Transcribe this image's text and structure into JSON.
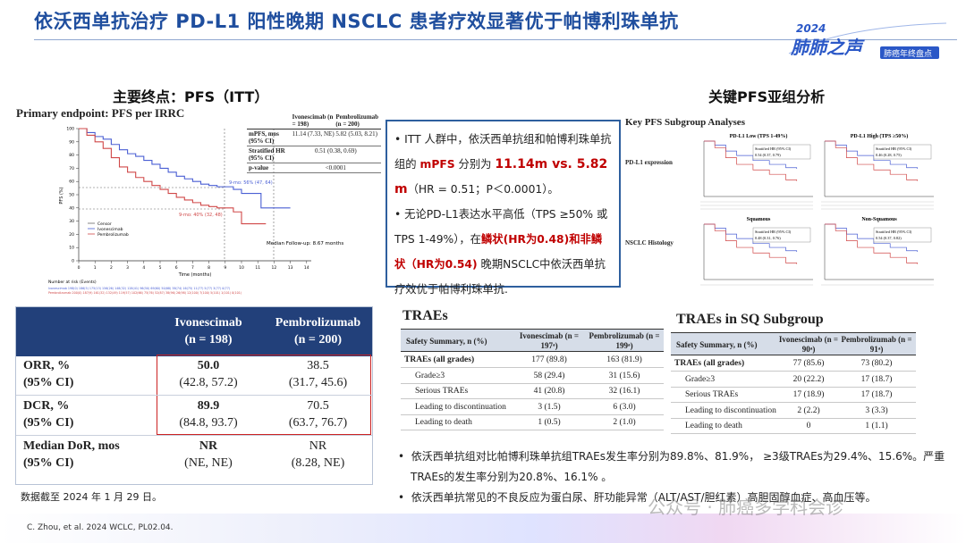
{
  "header": {
    "title": "依沃西单抗治疗 PD-L1 阳性晚期 NSCLC 患者疗效显著优于帕博利珠单抗",
    "logo_year": "2024",
    "logo_name": "肺肺之声",
    "logo_sub": "肺癌年终盘点"
  },
  "km": {
    "section_title": "主要终点：PFS（ITT）",
    "plot_title": "Primary endpoint: PFS per IRRC",
    "table": {
      "col1": "Ivonescimab (n = 198)",
      "col2": "Pembrolizumab (n = 200)",
      "r1_label": "mPFS, mos (95% CI)",
      "r1_c1": "11.14 (7.33, NE)",
      "r1_c2": "5.82 (5.03, 8.21)",
      "r2_label": "Stratified HR (95% CI)",
      "r2_val": "0.51 (0.38, 0.69)",
      "r3_label": "p-value",
      "r3_val": "<0.0001"
    },
    "ylabel": "PFS (%)",
    "xlabel": "Time (months)",
    "yticks": [
      "100",
      "90",
      "80",
      "70",
      "60",
      "50",
      "40",
      "30",
      "20",
      "10",
      "0"
    ],
    "xticks": [
      "0",
      "1",
      "2",
      "3",
      "4",
      "5",
      "6",
      "7",
      "8",
      "9",
      "10",
      "11",
      "12",
      "13",
      "14"
    ],
    "ann_ivo": "9-mo: 56% (47, 64)",
    "ann_pem": "9-mo: 40% (32, 48)",
    "legend": [
      "Censor",
      "Ivonescimab",
      "Pembrolizumab"
    ],
    "followup": "Median Follow-up: 8.67 months",
    "risk_title": "Number at risk (Events)",
    "risk_ivo": "Ivonescimab 198(0) 186(5) 175(13) 156(26) 148(32) 128(41) 96(50) 69(60) 50(68) 38(74) 16(75) 11(77) 5(77) 3(77) 0(77)",
    "risk_pem": "Pembrolizumab 200(0) 187(9) 161(32) 132(49) 119(57) 102(66) 75(76) 52(87) 38(96) 26(98) 12(100) 7(100) 5(101) 1(101) 0(101)"
  },
  "bullets_top": {
    "b1_a": "ITT 人群中，依沃西单抗组和帕博利珠单抗组的 ",
    "b1_mpfs": "mPFS",
    "b1_b": " 分别为 ",
    "b1_val": "11.14m vs. 5.82 m",
    "b1_c": "（HR = 0.51；P＜0.0001）。",
    "b2_a": "无论PD-L1表达水平高低（TPS ≥50% 或 TPS 1-49%），在",
    "b2_r1": "鳞状(HR为0.48)",
    "b2_b": "和",
    "b2_r2": "非鳞状（HR为0.54)",
    "b2_c": " 晚期NSCLC中依沃西单抗疗效优于帕博利珠单抗."
  },
  "subgroup": {
    "section_title": "关键PFS亚组分析",
    "plot_title": "Key PFS Subgroup Analyses",
    "row1_label": "PD-L1 expression",
    "row2_label": "NSCLC Histology",
    "panels": [
      {
        "title": "PD-L1 Low (TPS 1-49%)",
        "hr": "Stratified HR (95% CI)",
        "val": "0.54 (0.37, 0.79)"
      },
      {
        "title": "PD-L1 High (TPS ≥50%)",
        "hr": "Stratified HR (95% CI)",
        "val": "0.46 (0.28, 0.75)"
      },
      {
        "title": "Squamous",
        "hr": "Stratified HR (95% CI)",
        "val": "0.48 (0.31, 0.76)"
      },
      {
        "title": "Non-Squamous",
        "hr": "Stratified HR (95% CI)",
        "val": "0.54 (0.37, 0.82)"
      }
    ]
  },
  "orr": {
    "h1": "Ivonescimab",
    "h1b": "(n = 198)",
    "h2": "Pembrolizumab",
    "h2b": "(n = 200)",
    "rows": [
      {
        "l1": "ORR, %",
        "l2": "(95% CI)",
        "a1": "50.0",
        "a2": "(42.8, 57.2)",
        "b1": "38.5",
        "b2": "(31.7, 45.6)"
      },
      {
        "l1": "DCR, %",
        "l2": "(95% CI)",
        "a1": "89.9",
        "a2": "(84.8, 93.7)",
        "b1": "70.5",
        "b2": "(63.7, 76.7)"
      },
      {
        "l1": "Median DoR, mos",
        "l2": "(95% CI)",
        "a1": "NR",
        "a2": "(NE, NE)",
        "b1": "NR",
        "b2": "(8.28, NE)"
      }
    ],
    "note": "数据截至 2024 年 1 月 29 日。"
  },
  "traes": {
    "title": "TRAEs",
    "h0": "Safety Summary, n (%)",
    "h1": "Ivonescimab (n = 197ᵃ)",
    "h2": "Pembrolizumab (n = 199ᵃ)",
    "rows": [
      {
        "l": "TRAEs (all grades)",
        "a": "177 (89.8)",
        "b": "163 (81.9)"
      },
      {
        "l": "Grade≥3",
        "a": "58 (29.4)",
        "b": "31 (15.6)"
      },
      {
        "l": "Serious TRAEs",
        "a": "41 (20.8)",
        "b": "32 (16.1)"
      },
      {
        "l": "Leading to discontinuation",
        "a": "3 (1.5)",
        "b": "6 (3.0)"
      },
      {
        "l": "Leading to death",
        "a": "1 (0.5)",
        "b": "2 (1.0)"
      }
    ]
  },
  "traes_sq": {
    "title": "TRAEs in SQ Subgroup",
    "h0": "Safety Summary, n (%)",
    "h1": "Ivonescimab (n = 90ᵃ)",
    "h2": "Pembrolizumab (n = 91ᵃ)",
    "rows": [
      {
        "l": "TRAEs (all grades)",
        "a": "77 (85.6)",
        "b": "73 (80.2)"
      },
      {
        "l": "Grade≥3",
        "a": "20 (22.2)",
        "b": "17 (18.7)"
      },
      {
        "l": "Serious TRAEs",
        "a": "17 (18.9)",
        "b": "17 (18.7)"
      },
      {
        "l": "Leading to discontinuation",
        "a": "2 (2.2)",
        "b": "3 (3.3)"
      },
      {
        "l": "Leading to death",
        "a": "0",
        "b": "1 (1.1)"
      }
    ]
  },
  "bullets_bottom": {
    "b1": "依沃西单抗组对比帕博利珠单抗组TRAEs发生率分别为89.8%、81.9%， ≥3级TRAEs为29.4%、15.6%。严重 TRAEs的发生率分别为20.8%、16.1% 。",
    "b2": "依沃西单抗常见的不良反应为蛋白尿、肝功能异常（ALT/AST/胆红素）高胆固醇血症、高血压等。"
  },
  "footer": {
    "citation": "C. Zhou, et al. 2024 WCLC, PL02.04.",
    "watermark": "公众号 · 肺癌多学科会诊"
  },
  "colors": {
    "title": "#1f4e9e",
    "ivonescimab": "#4a5fd4",
    "pembrolizumab": "#d04848",
    "table_header": "#22407a",
    "highlight": "#c00000"
  }
}
